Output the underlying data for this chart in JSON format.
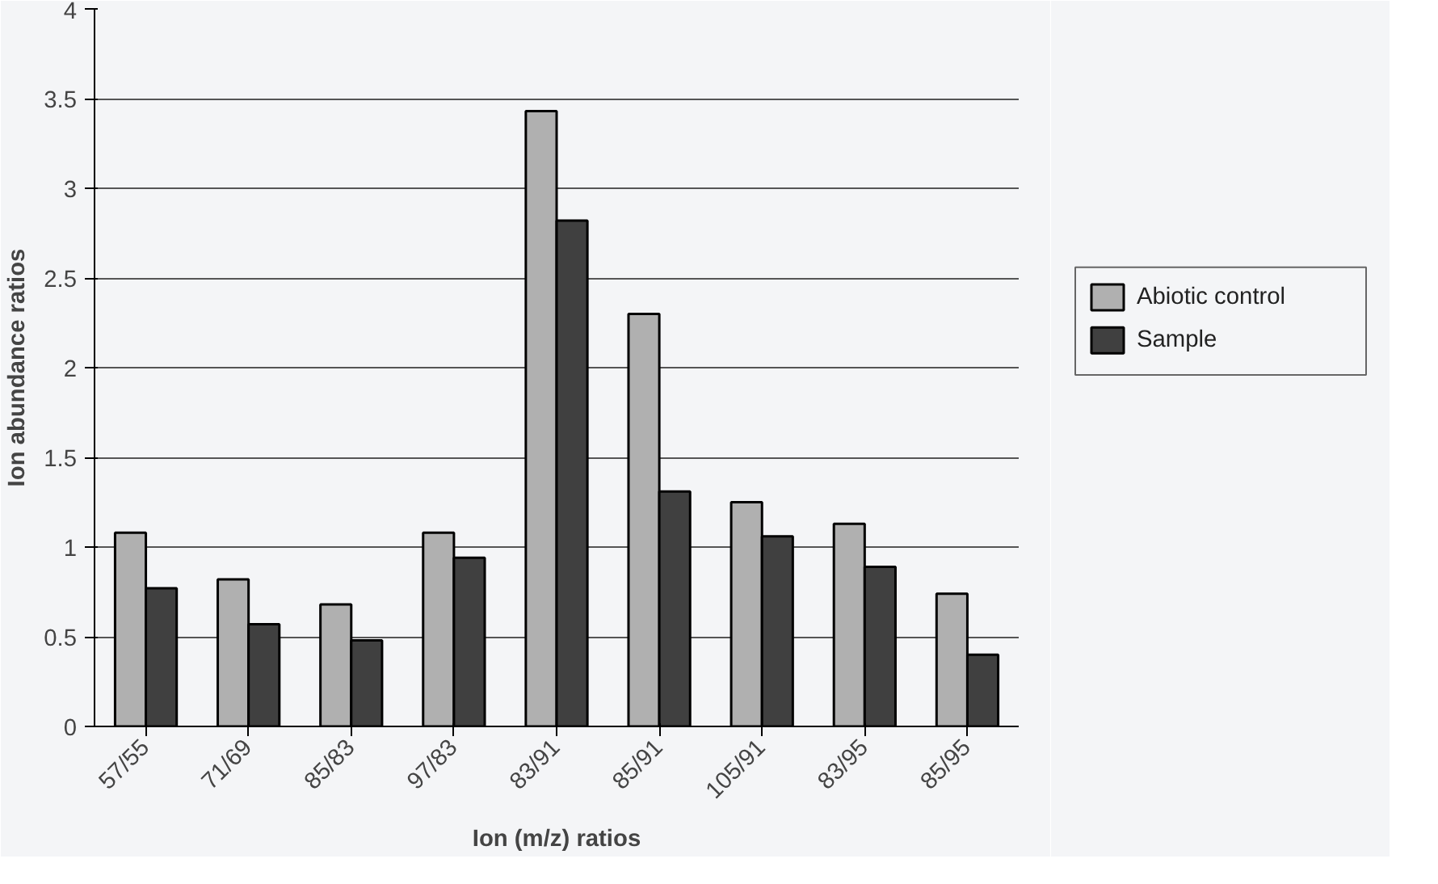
{
  "chart_data": {
    "type": "bar",
    "xlabel": "Ion (m/z) ratios",
    "ylabel": "Ion abundance ratios",
    "categories": [
      "57/55",
      "71/69",
      "85/83",
      "97/83",
      "83/91",
      "85/91",
      "105/91",
      "83/95",
      "85/95"
    ],
    "series": [
      {
        "name": "Abiotic control",
        "color": "#b0b0b0",
        "values": [
          1.08,
          0.82,
          0.68,
          1.08,
          3.43,
          2.3,
          1.25,
          1.13,
          0.74
        ]
      },
      {
        "name": "Sample",
        "color": "#404040",
        "values": [
          0.77,
          0.57,
          0.48,
          0.94,
          2.82,
          1.31,
          1.06,
          0.89,
          0.4
        ]
      }
    ],
    "ylim": [
      0,
      4
    ],
    "yticks": [
      0,
      0.5,
      1,
      1.5,
      2,
      2.5,
      3,
      3.5,
      4
    ],
    "grid": "y",
    "legend": "right"
  }
}
